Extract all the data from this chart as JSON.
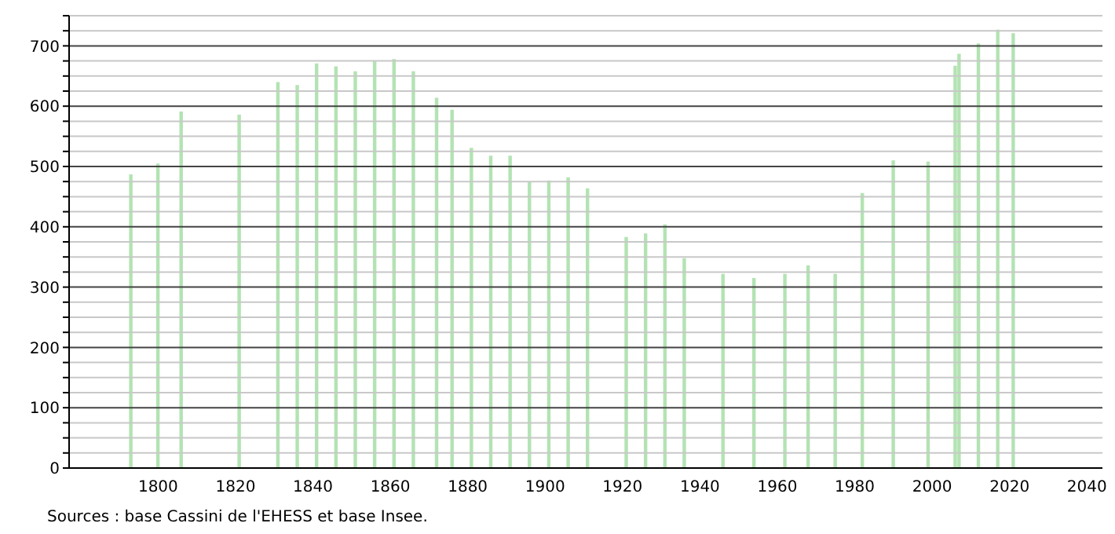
{
  "chart_data": {
    "type": "bar",
    "x": [
      1793,
      1800,
      1806,
      1821,
      1831,
      1836,
      1841,
      1846,
      1851,
      1856,
      1861,
      1866,
      1872,
      1876,
      1881,
      1886,
      1891,
      1896,
      1901,
      1906,
      1911,
      1921,
      1926,
      1931,
      1936,
      1946,
      1954,
      1962,
      1968,
      1975,
      1982,
      1990,
      1999,
      2006,
      2007,
      2012,
      2017,
      2021
    ],
    "values": [
      487,
      505,
      591,
      586,
      640,
      635,
      671,
      666,
      658,
      675,
      678,
      658,
      614,
      594,
      531,
      518,
      518,
      474,
      477,
      482,
      464,
      383,
      389,
      404,
      348,
      322,
      315,
      322,
      336,
      322,
      456,
      510,
      508,
      667,
      687,
      704,
      727,
      721
    ],
    "color": "#b3e3b3",
    "xlim": [
      1777,
      2044
    ],
    "xticks": [
      1800,
      1820,
      1840,
      1860,
      1880,
      1900,
      1920,
      1940,
      1960,
      1980,
      2000,
      2020,
      2040
    ],
    "ylim": [
      0,
      750
    ],
    "yticks": [
      0,
      {
        "value": 25,
        "label": null
      },
      {
        "value": 50,
        "label": null
      },
      {
        "value": 75,
        "label": null
      },
      100,
      {
        "value": 125,
        "label": null
      },
      {
        "value": 150,
        "label": null
      },
      {
        "value": 175,
        "label": null
      },
      200,
      {
        "value": 225,
        "label": null
      },
      {
        "value": 250,
        "label": null
      },
      {
        "value": 275,
        "label": null
      },
      300,
      {
        "value": 325,
        "label": null
      },
      {
        "value": 350,
        "label": null
      },
      {
        "value": 375,
        "label": null
      },
      400,
      {
        "value": 425,
        "label": null
      },
      {
        "value": 450,
        "label": null
      },
      {
        "value": 475,
        "label": null
      },
      500,
      {
        "value": 525,
        "label": null
      },
      {
        "value": 550,
        "label": null
      },
      {
        "value": 575,
        "label": null
      },
      600,
      {
        "value": 625,
        "label": null
      },
      {
        "value": 650,
        "label": null
      },
      {
        "value": 675,
        "label": null
      },
      700,
      {
        "value": 725,
        "label": null
      },
      {
        "value": 750,
        "label": null
      }
    ],
    "grid": "y",
    "annotations": [
      "Sources : base Cassini de l'EHESS et base Insee."
    ]
  }
}
